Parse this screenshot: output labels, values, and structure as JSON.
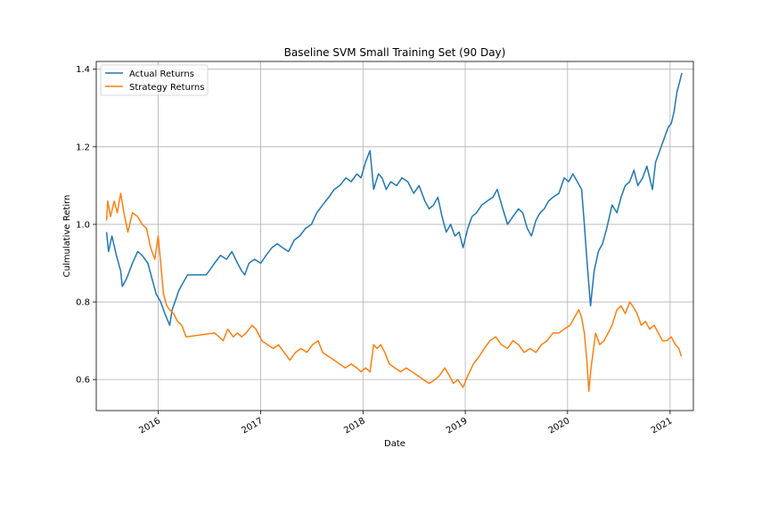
{
  "chart_data": {
    "type": "line",
    "title": "Baseline SVM Small Training Set (90 Day)",
    "xlabel": "Date",
    "ylabel": "Culmulative Retirn",
    "xlim": [
      "2015-05-25",
      "2021-03-25"
    ],
    "ylim": [
      0.52,
      1.42
    ],
    "x_ticks": [
      {
        "label": "2016",
        "date": "2016-01-01"
      },
      {
        "label": "2017",
        "date": "2017-01-01"
      },
      {
        "label": "2018",
        "date": "2018-01-01"
      },
      {
        "label": "2019",
        "date": "2019-01-01"
      },
      {
        "label": "2020",
        "date": "2020-01-01"
      },
      {
        "label": "2021",
        "date": "2021-01-01"
      }
    ],
    "y_ticks": [
      0.6,
      0.8,
      1.0,
      1.2,
      1.4
    ],
    "grid": true,
    "legend_position": "top-left",
    "series": [
      {
        "name": "Actual Returns",
        "color": "#1f77b4",
        "points": [
          [
            "2015-07-01",
            0.98
          ],
          [
            "2015-07-08",
            0.93
          ],
          [
            "2015-07-20",
            0.97
          ],
          [
            "2015-08-05",
            0.92
          ],
          [
            "2015-08-20",
            0.88
          ],
          [
            "2015-08-26",
            0.84
          ],
          [
            "2015-09-10",
            0.86
          ],
          [
            "2015-10-01",
            0.9
          ],
          [
            "2015-10-20",
            0.93
          ],
          [
            "2015-11-05",
            0.92
          ],
          [
            "2015-11-25",
            0.9
          ],
          [
            "2015-12-10",
            0.86
          ],
          [
            "2015-12-25",
            0.82
          ],
          [
            "2016-01-10",
            0.8
          ],
          [
            "2016-01-25",
            0.77
          ],
          [
            "2016-02-11",
            0.74
          ],
          [
            "2016-02-20",
            0.78
          ],
          [
            "2016-03-01",
            0.8
          ],
          [
            "2016-03-15",
            0.83
          ],
          [
            "2016-03-30",
            0.85
          ],
          [
            "2016-04-15",
            0.87
          ],
          [
            "2016-06-20",
            0.87
          ],
          [
            "2016-07-01",
            0.88
          ],
          [
            "2016-07-20",
            0.9
          ],
          [
            "2016-08-10",
            0.92
          ],
          [
            "2016-09-01",
            0.91
          ],
          [
            "2016-09-20",
            0.93
          ],
          [
            "2016-10-10",
            0.9
          ],
          [
            "2016-10-25",
            0.88
          ],
          [
            "2016-11-05",
            0.87
          ],
          [
            "2016-11-20",
            0.9
          ],
          [
            "2016-12-10",
            0.91
          ],
          [
            "2017-01-01",
            0.9
          ],
          [
            "2017-01-20",
            0.92
          ],
          [
            "2017-02-10",
            0.94
          ],
          [
            "2017-03-01",
            0.95
          ],
          [
            "2017-03-20",
            0.94
          ],
          [
            "2017-04-10",
            0.93
          ],
          [
            "2017-05-01",
            0.96
          ],
          [
            "2017-05-20",
            0.97
          ],
          [
            "2017-06-10",
            0.99
          ],
          [
            "2017-07-01",
            1.0
          ],
          [
            "2017-07-20",
            1.03
          ],
          [
            "2017-08-10",
            1.05
          ],
          [
            "2017-09-01",
            1.07
          ],
          [
            "2017-09-20",
            1.09
          ],
          [
            "2017-10-10",
            1.1
          ],
          [
            "2017-11-01",
            1.12
          ],
          [
            "2017-11-20",
            1.11
          ],
          [
            "2017-12-10",
            1.13
          ],
          [
            "2017-12-25",
            1.12
          ],
          [
            "2018-01-10",
            1.16
          ],
          [
            "2018-01-26",
            1.19
          ],
          [
            "2018-02-08",
            1.09
          ],
          [
            "2018-02-25",
            1.13
          ],
          [
            "2018-03-10",
            1.12
          ],
          [
            "2018-03-25",
            1.09
          ],
          [
            "2018-04-10",
            1.11
          ],
          [
            "2018-05-01",
            1.1
          ],
          [
            "2018-05-20",
            1.12
          ],
          [
            "2018-06-10",
            1.11
          ],
          [
            "2018-07-01",
            1.08
          ],
          [
            "2018-07-20",
            1.1
          ],
          [
            "2018-08-10",
            1.06
          ],
          [
            "2018-08-25",
            1.04
          ],
          [
            "2018-09-10",
            1.05
          ],
          [
            "2018-09-25",
            1.07
          ],
          [
            "2018-10-10",
            1.02
          ],
          [
            "2018-10-25",
            0.98
          ],
          [
            "2018-11-10",
            1.0
          ],
          [
            "2018-11-25",
            0.97
          ],
          [
            "2018-12-10",
            0.98
          ],
          [
            "2018-12-24",
            0.94
          ],
          [
            "2019-01-10",
            0.99
          ],
          [
            "2019-01-25",
            1.02
          ],
          [
            "2019-02-10",
            1.03
          ],
          [
            "2019-03-01",
            1.05
          ],
          [
            "2019-03-20",
            1.06
          ],
          [
            "2019-04-10",
            1.07
          ],
          [
            "2019-04-25",
            1.09
          ],
          [
            "2019-05-15",
            1.04
          ],
          [
            "2019-06-01",
            1.0
          ],
          [
            "2019-06-20",
            1.02
          ],
          [
            "2019-07-10",
            1.04
          ],
          [
            "2019-07-25",
            1.03
          ],
          [
            "2019-08-10",
            0.99
          ],
          [
            "2019-08-25",
            0.97
          ],
          [
            "2019-09-10",
            1.01
          ],
          [
            "2019-09-25",
            1.03
          ],
          [
            "2019-10-10",
            1.04
          ],
          [
            "2019-10-25",
            1.06
          ],
          [
            "2019-11-10",
            1.07
          ],
          [
            "2019-12-01",
            1.08
          ],
          [
            "2019-12-20",
            1.12
          ],
          [
            "2020-01-05",
            1.11
          ],
          [
            "2020-01-20",
            1.13
          ],
          [
            "2020-02-05",
            1.11
          ],
          [
            "2020-02-20",
            1.09
          ],
          [
            "2020-03-01",
            1.0
          ],
          [
            "2020-03-10",
            0.91
          ],
          [
            "2020-03-23",
            0.79
          ],
          [
            "2020-04-05",
            0.88
          ],
          [
            "2020-04-20",
            0.93
          ],
          [
            "2020-05-05",
            0.95
          ],
          [
            "2020-05-20",
            0.99
          ],
          [
            "2020-06-08",
            1.05
          ],
          [
            "2020-06-25",
            1.03
          ],
          [
            "2020-07-10",
            1.07
          ],
          [
            "2020-07-25",
            1.1
          ],
          [
            "2020-08-10",
            1.11
          ],
          [
            "2020-08-25",
            1.14
          ],
          [
            "2020-09-08",
            1.1
          ],
          [
            "2020-09-25",
            1.12
          ],
          [
            "2020-10-10",
            1.15
          ],
          [
            "2020-10-30",
            1.09
          ],
          [
            "2020-11-10",
            1.16
          ],
          [
            "2020-11-25",
            1.19
          ],
          [
            "2020-12-10",
            1.22
          ],
          [
            "2020-12-25",
            1.25
          ],
          [
            "2021-01-05",
            1.26
          ],
          [
            "2021-01-15",
            1.29
          ],
          [
            "2021-01-25",
            1.34
          ],
          [
            "2021-02-05",
            1.37
          ],
          [
            "2021-02-12",
            1.39
          ]
        ]
      },
      {
        "name": "Strategy Returns",
        "color": "#ff7f0e",
        "points": [
          [
            "2015-07-01",
            1.01
          ],
          [
            "2015-07-05",
            1.06
          ],
          [
            "2015-07-15",
            1.02
          ],
          [
            "2015-07-28",
            1.06
          ],
          [
            "2015-08-08",
            1.03
          ],
          [
            "2015-08-20",
            1.08
          ],
          [
            "2015-09-01",
            1.03
          ],
          [
            "2015-09-15",
            0.98
          ],
          [
            "2015-10-01",
            1.03
          ],
          [
            "2015-10-20",
            1.02
          ],
          [
            "2015-11-05",
            1.0
          ],
          [
            "2015-11-20",
            0.99
          ],
          [
            "2015-12-05",
            0.94
          ],
          [
            "2015-12-20",
            0.91
          ],
          [
            "2016-01-01",
            0.97
          ],
          [
            "2016-01-10",
            0.9
          ],
          [
            "2016-01-20",
            0.82
          ],
          [
            "2016-02-01",
            0.79
          ],
          [
            "2016-02-11",
            0.78
          ],
          [
            "2016-02-25",
            0.77
          ],
          [
            "2016-03-10",
            0.75
          ],
          [
            "2016-03-25",
            0.74
          ],
          [
            "2016-04-10",
            0.71
          ],
          [
            "2016-07-20",
            0.72
          ],
          [
            "2016-08-05",
            0.71
          ],
          [
            "2016-08-20",
            0.7
          ],
          [
            "2016-09-05",
            0.73
          ],
          [
            "2016-09-25",
            0.71
          ],
          [
            "2016-10-10",
            0.72
          ],
          [
            "2016-10-25",
            0.71
          ],
          [
            "2016-11-10",
            0.72
          ],
          [
            "2016-12-01",
            0.74
          ],
          [
            "2016-12-15",
            0.73
          ],
          [
            "2017-01-05",
            0.7
          ],
          [
            "2017-01-25",
            0.69
          ],
          [
            "2017-02-15",
            0.68
          ],
          [
            "2017-03-05",
            0.69
          ],
          [
            "2017-03-25",
            0.67
          ],
          [
            "2017-04-15",
            0.65
          ],
          [
            "2017-05-05",
            0.67
          ],
          [
            "2017-05-25",
            0.68
          ],
          [
            "2017-06-15",
            0.67
          ],
          [
            "2017-07-05",
            0.69
          ],
          [
            "2017-07-25",
            0.7
          ],
          [
            "2017-08-10",
            0.67
          ],
          [
            "2017-08-30",
            0.66
          ],
          [
            "2017-09-20",
            0.65
          ],
          [
            "2017-10-10",
            0.64
          ],
          [
            "2017-10-30",
            0.63
          ],
          [
            "2017-11-20",
            0.64
          ],
          [
            "2017-12-10",
            0.63
          ],
          [
            "2017-12-25",
            0.62
          ],
          [
            "2018-01-10",
            0.63
          ],
          [
            "2018-01-26",
            0.62
          ],
          [
            "2018-02-08",
            0.69
          ],
          [
            "2018-02-20",
            0.68
          ],
          [
            "2018-03-05",
            0.69
          ],
          [
            "2018-03-20",
            0.67
          ],
          [
            "2018-04-05",
            0.64
          ],
          [
            "2018-04-25",
            0.63
          ],
          [
            "2018-05-15",
            0.62
          ],
          [
            "2018-06-05",
            0.63
          ],
          [
            "2018-06-25",
            0.62
          ],
          [
            "2018-07-15",
            0.61
          ],
          [
            "2018-08-05",
            0.6
          ],
          [
            "2018-08-25",
            0.59
          ],
          [
            "2018-09-15",
            0.6
          ],
          [
            "2018-10-01",
            0.61
          ],
          [
            "2018-10-20",
            0.63
          ],
          [
            "2018-11-05",
            0.61
          ],
          [
            "2018-11-20",
            0.59
          ],
          [
            "2018-12-05",
            0.6
          ],
          [
            "2018-12-24",
            0.58
          ],
          [
            "2019-01-10",
            0.61
          ],
          [
            "2019-01-30",
            0.64
          ],
          [
            "2019-02-20",
            0.66
          ],
          [
            "2019-03-10",
            0.68
          ],
          [
            "2019-03-30",
            0.7
          ],
          [
            "2019-04-20",
            0.71
          ],
          [
            "2019-05-10",
            0.69
          ],
          [
            "2019-06-01",
            0.68
          ],
          [
            "2019-06-20",
            0.7
          ],
          [
            "2019-07-10",
            0.69
          ],
          [
            "2019-07-30",
            0.67
          ],
          [
            "2019-08-20",
            0.68
          ],
          [
            "2019-09-10",
            0.67
          ],
          [
            "2019-09-30",
            0.69
          ],
          [
            "2019-10-20",
            0.7
          ],
          [
            "2019-11-10",
            0.72
          ],
          [
            "2019-12-01",
            0.72
          ],
          [
            "2019-12-20",
            0.73
          ],
          [
            "2020-01-10",
            0.74
          ],
          [
            "2020-02-10",
            0.78
          ],
          [
            "2020-02-20",
            0.76
          ],
          [
            "2020-03-01",
            0.72
          ],
          [
            "2020-03-10",
            0.65
          ],
          [
            "2020-03-17",
            0.57
          ],
          [
            "2020-03-25",
            0.63
          ],
          [
            "2020-04-10",
            0.72
          ],
          [
            "2020-04-25",
            0.69
          ],
          [
            "2020-05-10",
            0.7
          ],
          [
            "2020-05-25",
            0.72
          ],
          [
            "2020-06-08",
            0.74
          ],
          [
            "2020-06-25",
            0.78
          ],
          [
            "2020-07-10",
            0.79
          ],
          [
            "2020-07-25",
            0.77
          ],
          [
            "2020-08-10",
            0.8
          ],
          [
            "2020-08-20",
            0.79
          ],
          [
            "2020-09-05",
            0.77
          ],
          [
            "2020-09-20",
            0.74
          ],
          [
            "2020-10-05",
            0.75
          ],
          [
            "2020-10-20",
            0.73
          ],
          [
            "2020-11-05",
            0.74
          ],
          [
            "2020-11-20",
            0.72
          ],
          [
            "2020-12-05",
            0.7
          ],
          [
            "2020-12-20",
            0.7
          ],
          [
            "2021-01-05",
            0.71
          ],
          [
            "2021-01-20",
            0.69
          ],
          [
            "2021-02-01",
            0.68
          ],
          [
            "2021-02-10",
            0.66
          ]
        ]
      }
    ]
  }
}
